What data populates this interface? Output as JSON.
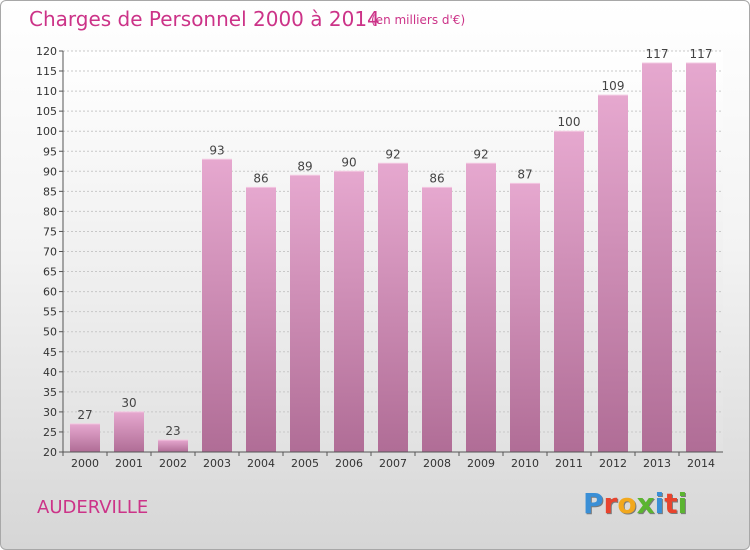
{
  "header": {
    "title": "Charges de Personnel 2000 à 2014",
    "subtitle": "(en milliers d'€)"
  },
  "footer": {
    "city": "AUDERVILLE",
    "logo": {
      "letters": [
        "P",
        "r",
        "o",
        "x",
        "i",
        "t",
        "i"
      ],
      "colors": [
        "#3a8fd6",
        "#e8442e",
        "#f2a81d",
        "#5bb531",
        "#3a8fd6",
        "#e8442e",
        "#5bb531"
      ]
    }
  },
  "chart_data": {
    "type": "bar",
    "title": "Charges de Personnel 2000 à 2014",
    "subtitle": "(en milliers d'€)",
    "categories": [
      "2000",
      "2001",
      "2002",
      "2003",
      "2004",
      "2005",
      "2006",
      "2007",
      "2008",
      "2009",
      "2010",
      "2011",
      "2012",
      "2013",
      "2014"
    ],
    "values": [
      27,
      30,
      23,
      93,
      86,
      89,
      90,
      92,
      86,
      92,
      87,
      100,
      109,
      117,
      117
    ],
    "ylim": [
      20,
      120
    ],
    "ytick_step": 5,
    "grid": true,
    "bar_color": "#d88db8"
  }
}
